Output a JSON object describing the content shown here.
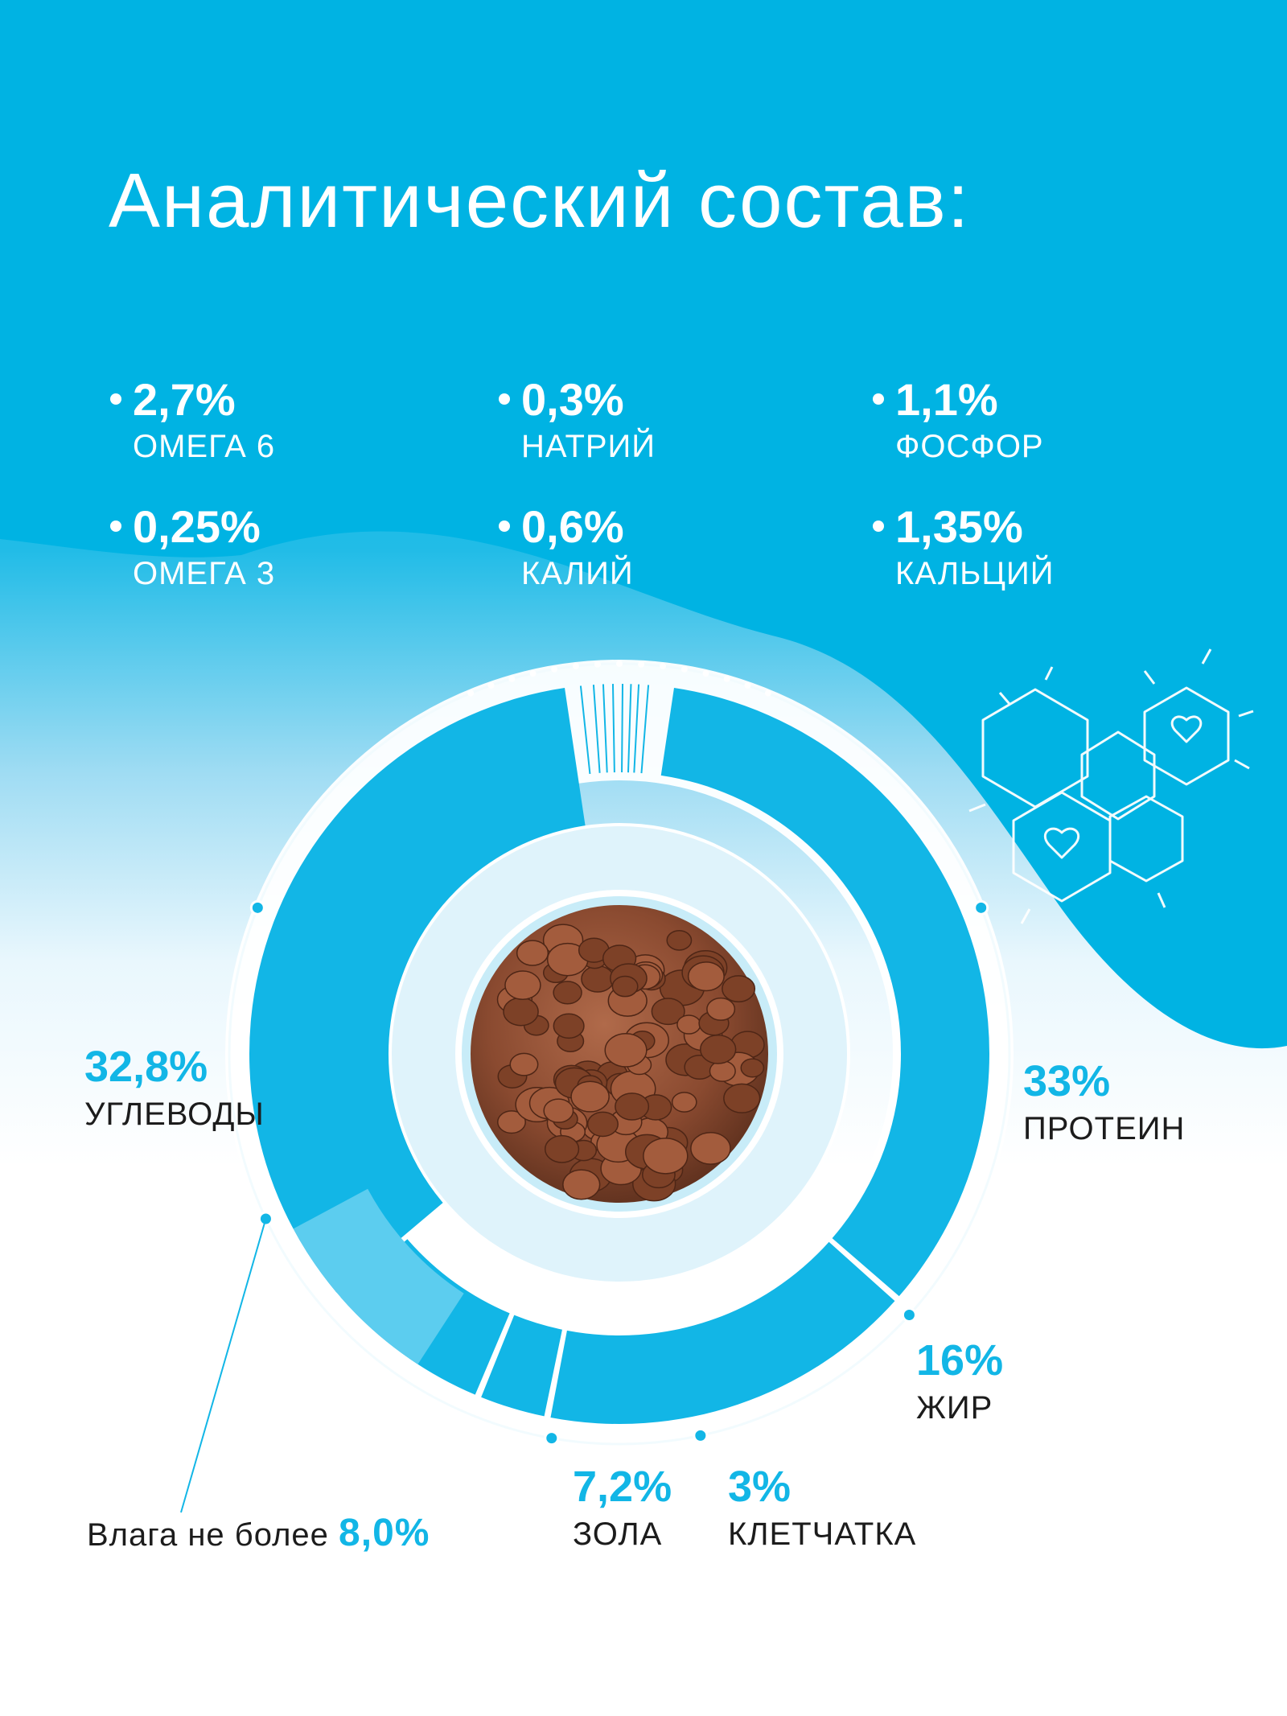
{
  "title": "Аналитический состав:",
  "colors": {
    "accent": "#12b6e6",
    "background_top": "#00b3e3",
    "text_dark": "#1c1c1c",
    "light_segment": "#5ccdef"
  },
  "nutrients": [
    {
      "value": "2,7%",
      "name": "ОМЕГА 6"
    },
    {
      "value": "0,3%",
      "name": "НАТРИЙ"
    },
    {
      "value": "1,1%",
      "name": "ФОСФОР"
    },
    {
      "value": "0,25%",
      "name": "ОМЕГА 3"
    },
    {
      "value": "0,6%",
      "name": "КАЛИЙ"
    },
    {
      "value": "1,35%",
      "name": "КАЛЬЦИЙ"
    }
  ],
  "moisture": {
    "prefix": "Влага не более",
    "value": "8,0%"
  },
  "center_image": "dry-food-kibble",
  "decoration_icon": "honeycomb-heart-icon",
  "chart_data": {
    "type": "pie",
    "categories": [
      "ПРОТЕИН",
      "ЖИР",
      "КЛЕТЧАТКА",
      "ЗОЛА",
      "УГЛЕВОДЫ"
    ],
    "values": [
      33,
      16,
      3,
      7.2,
      32.8
    ],
    "labels": [
      "33%",
      "16%",
      "3%",
      "7,2%",
      "32,8%"
    ]
  }
}
